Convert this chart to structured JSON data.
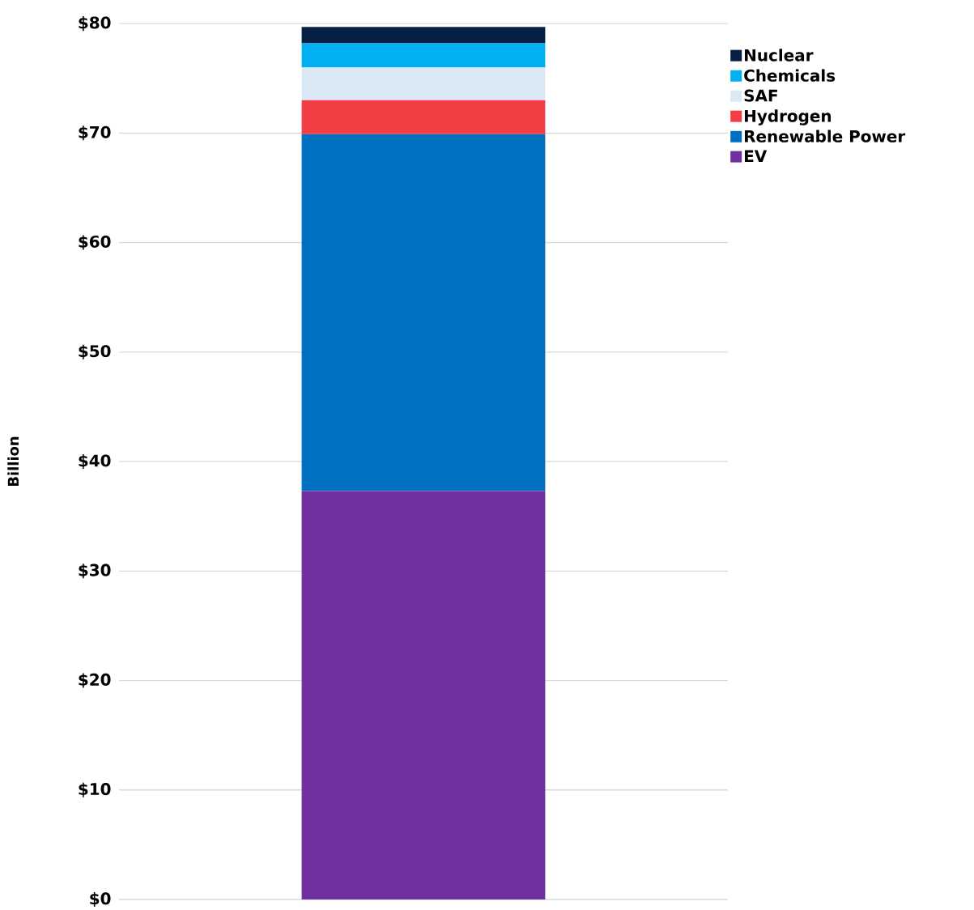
{
  "chart_data": {
    "type": "bar",
    "stacked": true,
    "ylabel": "Billion",
    "categories": [
      null
    ],
    "series": [
      {
        "name": "EV",
        "color": "#7030a0",
        "values": [
          37.3
        ]
      },
      {
        "name": "Renewable Power",
        "color": "#0070c0",
        "values": [
          32.6
        ]
      },
      {
        "name": "Hydrogen",
        "color": "#f33e45",
        "values": [
          3.1
        ]
      },
      {
        "name": "SAF",
        "color": "#dbe9f7",
        "values": [
          3.0
        ]
      },
      {
        "name": "Chemicals",
        "color": "#00b0f0",
        "values": [
          2.2
        ]
      },
      {
        "name": "Nuclear",
        "color": "#061f45",
        "values": [
          1.5
        ]
      }
    ],
    "ylim": [
      0,
      80
    ],
    "yticks": [
      {
        "value": 0,
        "label": "$0"
      },
      {
        "value": 10,
        "label": "$10"
      },
      {
        "value": 20,
        "label": "$20"
      },
      {
        "value": 30,
        "label": "$30"
      },
      {
        "value": 40,
        "label": "$40"
      },
      {
        "value": 50,
        "label": "$50"
      },
      {
        "value": 60,
        "label": "$60"
      },
      {
        "value": 70,
        "label": "$70"
      },
      {
        "value": 80,
        "label": "$80"
      }
    ],
    "grid": "y",
    "legend": "top right"
  }
}
